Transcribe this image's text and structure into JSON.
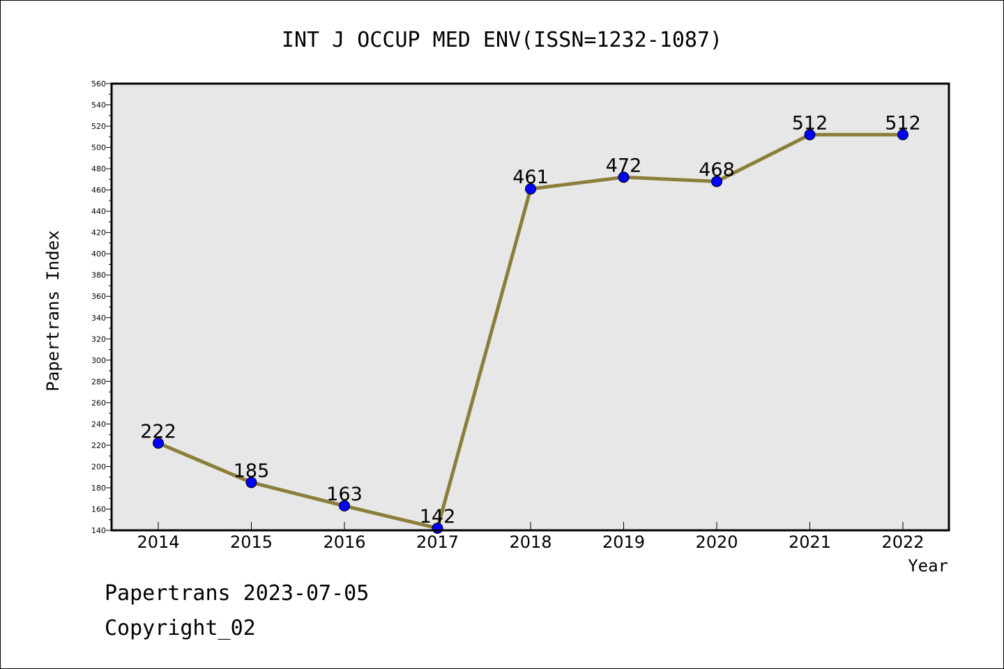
{
  "chart_data": {
    "type": "line",
    "title": "INT J OCCUP MED ENV(ISSN=1232-1087)",
    "xlabel": "Year",
    "ylabel": "Papertrans Index",
    "categories": [
      "2014",
      "2015",
      "2016",
      "2017",
      "2018",
      "2019",
      "2020",
      "2021",
      "2022"
    ],
    "series": [
      {
        "values": [
          222,
          185,
          163,
          142,
          461,
          472,
          468,
          512,
          512
        ]
      }
    ],
    "ylim": [
      140,
      560
    ],
    "yticks": [
      140,
      160,
      180,
      200,
      220,
      240,
      260,
      280,
      300,
      320,
      340,
      360,
      380,
      400,
      420,
      440,
      460,
      480,
      500,
      520,
      540,
      560
    ],
    "grid": false,
    "plot_background": "#e7e7e7",
    "line_color": "#8b7d3a",
    "marker_color": "#0000ff",
    "data_labels": true
  },
  "footer": {
    "line1": "Papertrans 2023-07-05",
    "line2": "Copyright_02"
  }
}
